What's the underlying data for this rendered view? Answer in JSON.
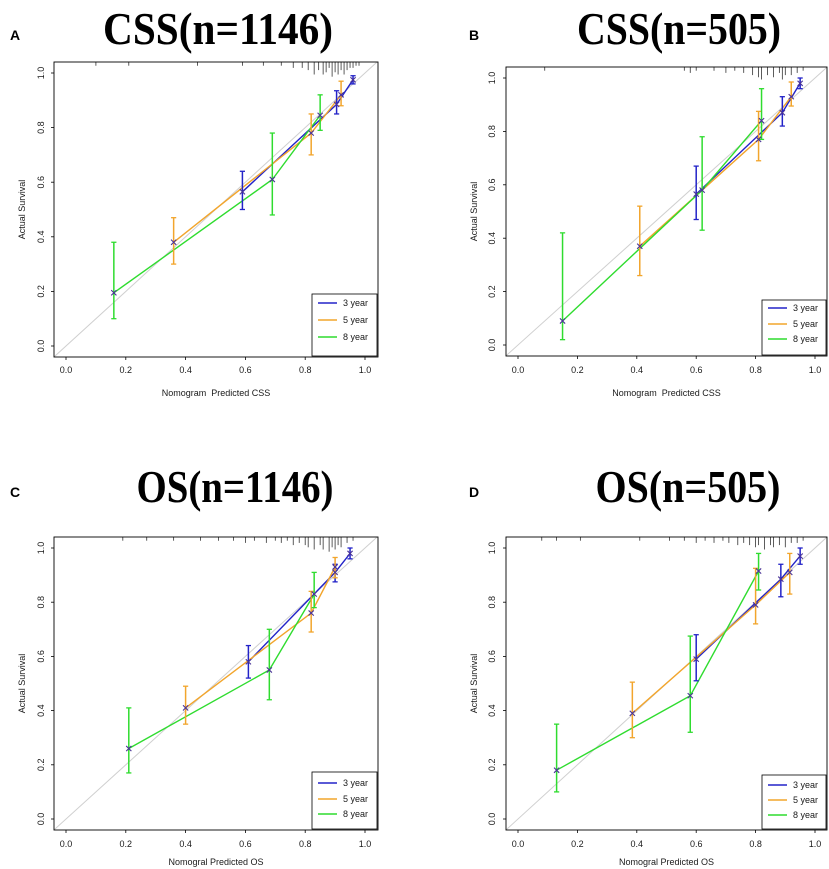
{
  "style": {
    "marker_color": "#4a3396",
    "reference_color": "#cfcfcf",
    "rug_color": "#333333",
    "axis_color": "#000000"
  },
  "chart_data": [
    {
      "panel_label": "A",
      "type": "line",
      "title": "CSS(n=1146)",
      "xlabel": "Nomogram  Predicted CSS",
      "ylabel": "Actual Survival",
      "xlim": [
        0,
        1
      ],
      "ylim": [
        0,
        1
      ],
      "x_ticks": [
        "0.0",
        "0.2",
        "0.4",
        "0.6",
        "0.8",
        "1.0"
      ],
      "y_ticks": [
        "0.0",
        "0.2",
        "0.4",
        "0.6",
        "0.8",
        "1.0"
      ],
      "legend_position": "bottom-right",
      "series": [
        {
          "name": "3 year",
          "color": "#2323c8",
          "points": [
            {
              "x": 0.59,
              "y": 0.565,
              "lo": 0.5,
              "hi": 0.64
            },
            {
              "x": 0.905,
              "y": 0.885,
              "lo": 0.85,
              "hi": 0.935
            },
            {
              "x": 0.96,
              "y": 0.975,
              "lo": 0.96,
              "hi": 0.99
            }
          ]
        },
        {
          "name": "5 year",
          "color": "#f2a52c",
          "points": [
            {
              "x": 0.36,
              "y": 0.38,
              "lo": 0.3,
              "hi": 0.47
            },
            {
              "x": 0.82,
              "y": 0.78,
              "lo": 0.7,
              "hi": 0.85
            },
            {
              "x": 0.92,
              "y": 0.92,
              "lo": 0.88,
              "hi": 0.97
            }
          ]
        },
        {
          "name": "8 year",
          "color": "#2fdc2f",
          "points": [
            {
              "x": 0.16,
              "y": 0.195,
              "lo": 0.1,
              "hi": 0.38
            },
            {
              "x": 0.69,
              "y": 0.61,
              "lo": 0.48,
              "hi": 0.78
            },
            {
              "x": 0.85,
              "y": 0.845,
              "lo": 0.79,
              "hi": 0.92
            }
          ]
        }
      ],
      "rug": [
        [
          0.1,
          1
        ],
        [
          0.21,
          1
        ],
        [
          0.44,
          1
        ],
        [
          0.59,
          1
        ],
        [
          0.66,
          1
        ],
        [
          0.72,
          1
        ],
        [
          0.76,
          2
        ],
        [
          0.79,
          2
        ],
        [
          0.81,
          3
        ],
        [
          0.83,
          5
        ],
        [
          0.845,
          3
        ],
        [
          0.86,
          5
        ],
        [
          0.87,
          4
        ],
        [
          0.88,
          2
        ],
        [
          0.89,
          6
        ],
        [
          0.9,
          4
        ],
        [
          0.91,
          5
        ],
        [
          0.92,
          3
        ],
        [
          0.93,
          5
        ],
        [
          0.94,
          3
        ],
        [
          0.95,
          2
        ],
        [
          0.96,
          2
        ],
        [
          0.97,
          1
        ],
        [
          0.98,
          1
        ]
      ]
    },
    {
      "panel_label": "B",
      "type": "line",
      "title": "CSS(n=505)",
      "xlabel": "Nomogram  Predicted CSS",
      "ylabel": "Actual Survival",
      "xlim": [
        0,
        1
      ],
      "ylim": [
        0,
        1
      ],
      "x_ticks": [
        "0.0",
        "0.2",
        "0.4",
        "0.6",
        "0.8",
        "1.0"
      ],
      "y_ticks": [
        "0.0",
        "0.2",
        "0.4",
        "0.6",
        "0.8",
        "1.0"
      ],
      "legend_position": "bottom-right",
      "series": [
        {
          "name": "3 year",
          "color": "#2323c8",
          "points": [
            {
              "x": 0.6,
              "y": 0.565,
              "lo": 0.47,
              "hi": 0.67
            },
            {
              "x": 0.89,
              "y": 0.87,
              "lo": 0.82,
              "hi": 0.93
            },
            {
              "x": 0.95,
              "y": 0.98,
              "lo": 0.96,
              "hi": 1.0
            }
          ]
        },
        {
          "name": "5 year",
          "color": "#f2a52c",
          "points": [
            {
              "x": 0.41,
              "y": 0.37,
              "lo": 0.26,
              "hi": 0.52
            },
            {
              "x": 0.81,
              "y": 0.77,
              "lo": 0.69,
              "hi": 0.875
            },
            {
              "x": 0.92,
              "y": 0.93,
              "lo": 0.895,
              "hi": 0.985
            }
          ]
        },
        {
          "name": "8 year",
          "color": "#2fdc2f",
          "points": [
            {
              "x": 0.15,
              "y": 0.09,
              "lo": 0.02,
              "hi": 0.42
            },
            {
              "x": 0.62,
              "y": 0.58,
              "lo": 0.43,
              "hi": 0.78
            },
            {
              "x": 0.82,
              "y": 0.84,
              "lo": 0.77,
              "hi": 0.96
            }
          ]
        }
      ],
      "rug": [
        [
          0.09,
          1
        ],
        [
          0.56,
          1
        ],
        [
          0.58,
          2
        ],
        [
          0.6,
          1
        ],
        [
          0.66,
          1
        ],
        [
          0.7,
          2
        ],
        [
          0.73,
          1
        ],
        [
          0.76,
          2
        ],
        [
          0.79,
          3
        ],
        [
          0.81,
          4
        ],
        [
          0.82,
          5
        ],
        [
          0.84,
          3
        ],
        [
          0.86,
          4
        ],
        [
          0.88,
          2
        ],
        [
          0.89,
          5
        ],
        [
          0.9,
          3
        ],
        [
          0.92,
          3
        ],
        [
          0.94,
          2
        ],
        [
          0.96,
          1
        ]
      ]
    },
    {
      "panel_label": "C",
      "type": "line",
      "title": "OS(n=1146)",
      "xlabel": "Nomogral Predicted OS",
      "ylabel": "Actual Survival",
      "xlim": [
        0,
        1
      ],
      "ylim": [
        0,
        1
      ],
      "x_ticks": [
        "0.0",
        "0.2",
        "0.4",
        "0.6",
        "0.8",
        "1.0"
      ],
      "y_ticks": [
        "0.0",
        "0.2",
        "0.4",
        "0.6",
        "0.8",
        "1.0"
      ],
      "legend_position": "bottom-right",
      "series": [
        {
          "name": "3 year",
          "color": "#2323c8",
          "points": [
            {
              "x": 0.61,
              "y": 0.58,
              "lo": 0.52,
              "hi": 0.64
            },
            {
              "x": 0.9,
              "y": 0.91,
              "lo": 0.875,
              "hi": 0.94
            },
            {
              "x": 0.95,
              "y": 0.98,
              "lo": 0.96,
              "hi": 1.0
            }
          ]
        },
        {
          "name": "5 year",
          "color": "#f2a52c",
          "points": [
            {
              "x": 0.4,
              "y": 0.41,
              "lo": 0.35,
              "hi": 0.49
            },
            {
              "x": 0.82,
              "y": 0.76,
              "lo": 0.69,
              "hi": 0.84
            },
            {
              "x": 0.9,
              "y": 0.93,
              "lo": 0.89,
              "hi": 0.965
            }
          ]
        },
        {
          "name": "8 year",
          "color": "#2fdc2f",
          "points": [
            {
              "x": 0.21,
              "y": 0.26,
              "lo": 0.17,
              "hi": 0.41
            },
            {
              "x": 0.68,
              "y": 0.55,
              "lo": 0.44,
              "hi": 0.7
            },
            {
              "x": 0.83,
              "y": 0.83,
              "lo": 0.78,
              "hi": 0.91
            }
          ]
        }
      ],
      "rug": [
        [
          0.19,
          1
        ],
        [
          0.27,
          1
        ],
        [
          0.36,
          1
        ],
        [
          0.45,
          1
        ],
        [
          0.51,
          1
        ],
        [
          0.56,
          1
        ],
        [
          0.6,
          2
        ],
        [
          0.63,
          1
        ],
        [
          0.67,
          2
        ],
        [
          0.7,
          1
        ],
        [
          0.72,
          2
        ],
        [
          0.74,
          1
        ],
        [
          0.76,
          3
        ],
        [
          0.78,
          2
        ],
        [
          0.8,
          3
        ],
        [
          0.81,
          4
        ],
        [
          0.83,
          5
        ],
        [
          0.85,
          3
        ],
        [
          0.86,
          5
        ],
        [
          0.88,
          6
        ],
        [
          0.89,
          4
        ],
        [
          0.9,
          5
        ],
        [
          0.91,
          3
        ],
        [
          0.92,
          4
        ],
        [
          0.94,
          2
        ],
        [
          0.96,
          1
        ]
      ]
    },
    {
      "panel_label": "D",
      "type": "line",
      "title": "OS(n=505)",
      "xlabel": "Nomogral Predicted OS",
      "ylabel": "Actual Survival",
      "xlim": [
        0,
        1
      ],
      "ylim": [
        0,
        1
      ],
      "x_ticks": [
        "0.0",
        "0.2",
        "0.4",
        "0.6",
        "0.8",
        "1.0"
      ],
      "y_ticks": [
        "0.0",
        "0.2",
        "0.4",
        "0.6",
        "0.8",
        "1.0"
      ],
      "legend_position": "bottom-right",
      "series": [
        {
          "name": "3 year",
          "color": "#2323c8",
          "points": [
            {
              "x": 0.6,
              "y": 0.59,
              "lo": 0.51,
              "hi": 0.68
            },
            {
              "x": 0.885,
              "y": 0.885,
              "lo": 0.82,
              "hi": 0.94
            },
            {
              "x": 0.95,
              "y": 0.97,
              "lo": 0.94,
              "hi": 1.0
            }
          ]
        },
        {
          "name": "5 year",
          "color": "#f2a52c",
          "points": [
            {
              "x": 0.385,
              "y": 0.39,
              "lo": 0.3,
              "hi": 0.505
            },
            {
              "x": 0.8,
              "y": 0.79,
              "lo": 0.72,
              "hi": 0.925
            },
            {
              "x": 0.915,
              "y": 0.91,
              "lo": 0.83,
              "hi": 0.98
            }
          ]
        },
        {
          "name": "8 year",
          "color": "#2fdc2f",
          "points": [
            {
              "x": 0.13,
              "y": 0.18,
              "lo": 0.1,
              "hi": 0.35
            },
            {
              "x": 0.58,
              "y": 0.455,
              "lo": 0.32,
              "hi": 0.675
            },
            {
              "x": 0.81,
              "y": 0.915,
              "lo": 0.845,
              "hi": 0.98
            }
          ]
        }
      ],
      "rug": [
        [
          0.08,
          1
        ],
        [
          0.13,
          1
        ],
        [
          0.21,
          1
        ],
        [
          0.41,
          1
        ],
        [
          0.51,
          1
        ],
        [
          0.56,
          1
        ],
        [
          0.6,
          2
        ],
        [
          0.63,
          1
        ],
        [
          0.66,
          2
        ],
        [
          0.69,
          1
        ],
        [
          0.71,
          2
        ],
        [
          0.74,
          3
        ],
        [
          0.76,
          2
        ],
        [
          0.78,
          3
        ],
        [
          0.8,
          4
        ],
        [
          0.81,
          3
        ],
        [
          0.83,
          5
        ],
        [
          0.85,
          3
        ],
        [
          0.86,
          4
        ],
        [
          0.88,
          3
        ],
        [
          0.9,
          4
        ],
        [
          0.92,
          2
        ],
        [
          0.94,
          2
        ],
        [
          0.96,
          1
        ]
      ]
    }
  ]
}
